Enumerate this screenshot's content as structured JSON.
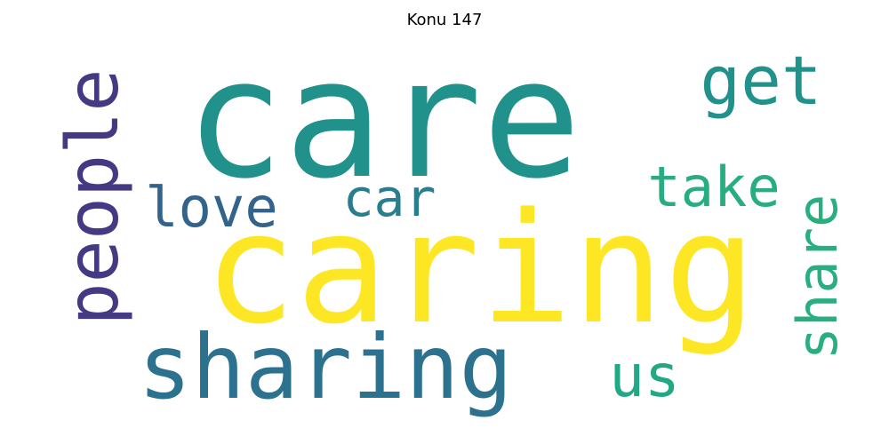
{
  "title": "Konu 147",
  "words": [
    {
      "text": "care",
      "color": "#21918c"
    },
    {
      "text": "caring",
      "color": "#fde725"
    },
    {
      "text": "people",
      "color": "#443983"
    },
    {
      "text": "sharing",
      "color": "#2c728e"
    },
    {
      "text": "get",
      "color": "#21918c"
    },
    {
      "text": "take",
      "color": "#27ad81"
    },
    {
      "text": "love",
      "color": "#33638d"
    },
    {
      "text": "car",
      "color": "#287d8e"
    },
    {
      "text": "share",
      "color": "#29af7f"
    },
    {
      "text": "us",
      "color": "#22a884"
    }
  ]
}
